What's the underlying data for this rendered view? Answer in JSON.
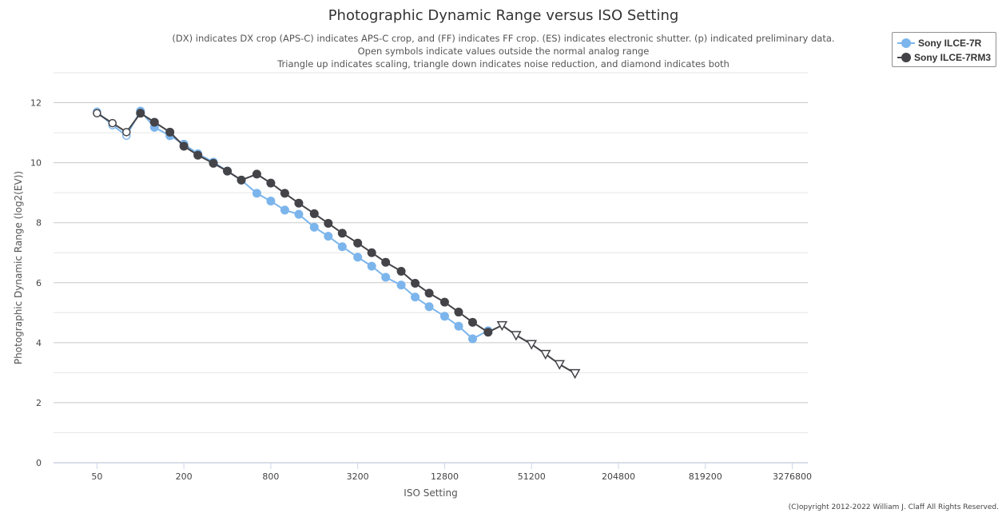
{
  "chart_data": {
    "type": "line",
    "title": "Photographic Dynamic Range versus ISO Setting",
    "subtitle_lines": [
      "(DX) indicates DX crop (APS-C) indicates APS-C crop, and (FF) indicates FF crop. (ES) indicates electronic shutter. (p) indicated preliminary data.",
      "Open symbols indicate values outside the normal analog range",
      "Triangle up indicates scaling, triangle down indicates noise reduction, and diamond indicates both"
    ],
    "xlabel": "ISO Setting",
    "ylabel": "Photographic Dynamic Range (log2(EV))",
    "x_scale": "log2",
    "xlim": [
      25,
      4200000
    ],
    "ylim": [
      0,
      13
    ],
    "x_ticks": [
      50,
      200,
      800,
      3200,
      12800,
      51200,
      204800,
      819200,
      3276800
    ],
    "x_tick_labels": [
      "50",
      "200",
      "800",
      "3200",
      "12800",
      "51200",
      "204800",
      "819200",
      "3276800"
    ],
    "y_ticks": [
      0,
      2,
      4,
      6,
      8,
      10,
      12
    ],
    "y_tick_labels": [
      "0",
      "2",
      "4",
      "6",
      "8",
      "10",
      "12"
    ],
    "grid": true,
    "legend_position": "top-right",
    "series": [
      {
        "name": "Sony ILCE-7R",
        "color": "#7cb5ec",
        "points": [
          {
            "iso": 50,
            "dr": 11.7,
            "marker": "open-circle"
          },
          {
            "iso": 64,
            "dr": 11.25,
            "marker": "open-circle"
          },
          {
            "iso": 80,
            "dr": 10.9,
            "marker": "open-circle"
          },
          {
            "iso": 100,
            "dr": 11.72,
            "marker": "circle"
          },
          {
            "iso": 125,
            "dr": 11.18,
            "marker": "circle"
          },
          {
            "iso": 160,
            "dr": 10.9,
            "marker": "circle"
          },
          {
            "iso": 200,
            "dr": 10.62,
            "marker": "circle"
          },
          {
            "iso": 250,
            "dr": 10.3,
            "marker": "circle"
          },
          {
            "iso": 320,
            "dr": 10.02,
            "marker": "circle"
          },
          {
            "iso": 400,
            "dr": 9.72,
            "marker": "circle"
          },
          {
            "iso": 500,
            "dr": 9.42,
            "marker": "circle"
          },
          {
            "iso": 640,
            "dr": 8.98,
            "marker": "circle"
          },
          {
            "iso": 800,
            "dr": 8.72,
            "marker": "circle"
          },
          {
            "iso": 1000,
            "dr": 8.42,
            "marker": "circle"
          },
          {
            "iso": 1250,
            "dr": 8.28,
            "marker": "circle"
          },
          {
            "iso": 1600,
            "dr": 7.85,
            "marker": "circle"
          },
          {
            "iso": 2000,
            "dr": 7.55,
            "marker": "circle"
          },
          {
            "iso": 2500,
            "dr": 7.2,
            "marker": "circle"
          },
          {
            "iso": 3200,
            "dr": 6.85,
            "marker": "circle"
          },
          {
            "iso": 4000,
            "dr": 6.55,
            "marker": "circle"
          },
          {
            "iso": 5000,
            "dr": 6.18,
            "marker": "circle"
          },
          {
            "iso": 6400,
            "dr": 5.92,
            "marker": "circle"
          },
          {
            "iso": 8000,
            "dr": 5.52,
            "marker": "circle"
          },
          {
            "iso": 10000,
            "dr": 5.2,
            "marker": "circle"
          },
          {
            "iso": 12800,
            "dr": 4.88,
            "marker": "circle"
          },
          {
            "iso": 16000,
            "dr": 4.55,
            "marker": "circle"
          },
          {
            "iso": 20000,
            "dr": 4.13,
            "marker": "circle"
          },
          {
            "iso": 25600,
            "dr": 4.4,
            "marker": "circle"
          }
        ]
      },
      {
        "name": "Sony ILCE-7RM3",
        "color": "#434348",
        "points": [
          {
            "iso": 50,
            "dr": 11.65,
            "marker": "open-circle"
          },
          {
            "iso": 64,
            "dr": 11.32,
            "marker": "open-circle"
          },
          {
            "iso": 80,
            "dr": 11.02,
            "marker": "open-circle"
          },
          {
            "iso": 100,
            "dr": 11.65,
            "marker": "circle"
          },
          {
            "iso": 125,
            "dr": 11.35,
            "marker": "circle"
          },
          {
            "iso": 160,
            "dr": 11.02,
            "marker": "circle"
          },
          {
            "iso": 200,
            "dr": 10.55,
            "marker": "circle"
          },
          {
            "iso": 250,
            "dr": 10.25,
            "marker": "circle"
          },
          {
            "iso": 320,
            "dr": 9.98,
            "marker": "circle"
          },
          {
            "iso": 400,
            "dr": 9.72,
            "marker": "circle"
          },
          {
            "iso": 500,
            "dr": 9.42,
            "marker": "circle"
          },
          {
            "iso": 640,
            "dr": 9.62,
            "marker": "circle"
          },
          {
            "iso": 800,
            "dr": 9.32,
            "marker": "circle"
          },
          {
            "iso": 1000,
            "dr": 8.98,
            "marker": "circle"
          },
          {
            "iso": 1250,
            "dr": 8.65,
            "marker": "circle"
          },
          {
            "iso": 1600,
            "dr": 8.3,
            "marker": "circle"
          },
          {
            "iso": 2000,
            "dr": 7.98,
            "marker": "circle"
          },
          {
            "iso": 2500,
            "dr": 7.65,
            "marker": "circle"
          },
          {
            "iso": 3200,
            "dr": 7.32,
            "marker": "circle"
          },
          {
            "iso": 4000,
            "dr": 7.0,
            "marker": "circle"
          },
          {
            "iso": 5000,
            "dr": 6.68,
            "marker": "circle"
          },
          {
            "iso": 6400,
            "dr": 6.38,
            "marker": "circle"
          },
          {
            "iso": 8000,
            "dr": 5.98,
            "marker": "circle"
          },
          {
            "iso": 10000,
            "dr": 5.65,
            "marker": "circle"
          },
          {
            "iso": 12800,
            "dr": 5.35,
            "marker": "circle"
          },
          {
            "iso": 16000,
            "dr": 5.02,
            "marker": "circle"
          },
          {
            "iso": 20000,
            "dr": 4.68,
            "marker": "circle"
          },
          {
            "iso": 25600,
            "dr": 4.35,
            "marker": "circle"
          },
          {
            "iso": 32000,
            "dr": 4.58,
            "marker": "open-triangle-down"
          },
          {
            "iso": 40000,
            "dr": 4.25,
            "marker": "open-triangle-down"
          },
          {
            "iso": 51200,
            "dr": 3.95,
            "marker": "open-triangle-down"
          },
          {
            "iso": 64000,
            "dr": 3.62,
            "marker": "open-triangle-down"
          },
          {
            "iso": 80000,
            "dr": 3.28,
            "marker": "open-triangle-down"
          },
          {
            "iso": 102400,
            "dr": 2.98,
            "marker": "open-triangle-down"
          }
        ]
      }
    ]
  },
  "copyright": "(C)opyright 2012-2022 William J. Claff All Rights Reserved."
}
